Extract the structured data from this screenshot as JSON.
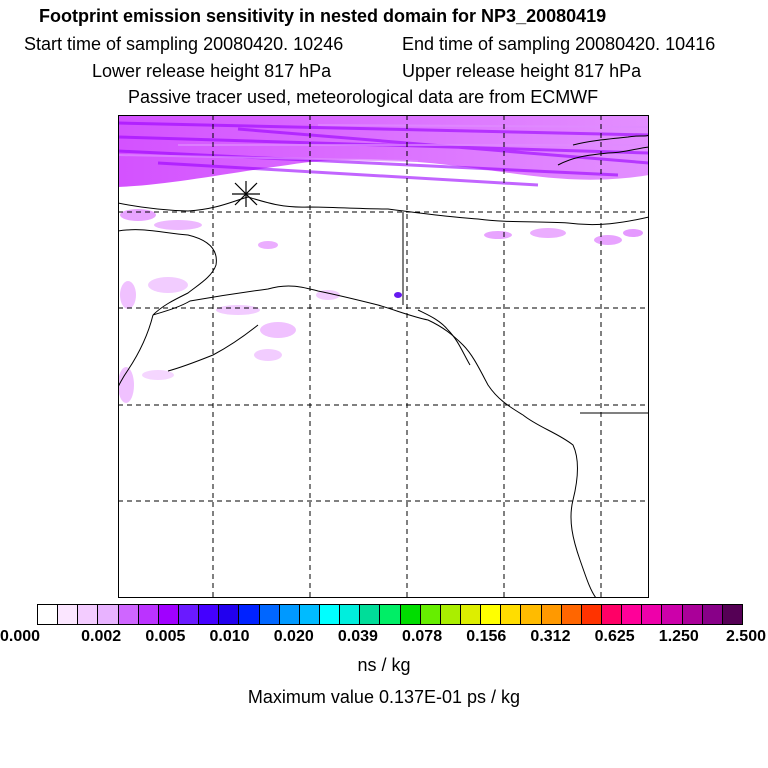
{
  "header": {
    "title": "Footprint emission sensitivity in nested domain for NP3_20080419",
    "start_time": "Start time of sampling 20080420. 10246",
    "end_time": "End time of sampling 20080420. 10416",
    "lower_height": "Lower release height  817 hPa",
    "upper_height": "Upper release height  817 hPa",
    "tracer_note": "Passive tracer used, meteorological data are from ECMWF"
  },
  "map": {
    "release_marker_icon": "asterisk-release-point",
    "plume_color": "#cc33ff",
    "coastline_color": "#000000",
    "gridline_style": "dashed"
  },
  "colorbar": {
    "colors": [
      "#ffffff",
      "#fbe6ff",
      "#f3ccff",
      "#e8b3ff",
      "#cf66ff",
      "#bb33ff",
      "#a000ff",
      "#6a1aff",
      "#4400ff",
      "#2200ee",
      "#0022ff",
      "#0066ff",
      "#0099ff",
      "#00bbff",
      "#00ffff",
      "#00eedd",
      "#00dd99",
      "#00ee66",
      "#00dd00",
      "#66ee00",
      "#aaee00",
      "#ddee00",
      "#ffff00",
      "#ffdd00",
      "#ffbb00",
      "#ff9900",
      "#ff6600",
      "#ff3300",
      "#ff0066",
      "#ff0099",
      "#ee00aa",
      "#cc00aa",
      "#aa0099",
      "#880088",
      "#550055"
    ],
    "tick_labels": [
      "0.000",
      "0.002",
      "0.005",
      "0.010",
      "0.020",
      "0.039",
      "0.078",
      "0.156",
      "0.312",
      "0.625",
      "1.250",
      "2.500"
    ],
    "unit": "ns / kg",
    "max_value": "Maximum value  0.137E-01 ps / kg"
  }
}
